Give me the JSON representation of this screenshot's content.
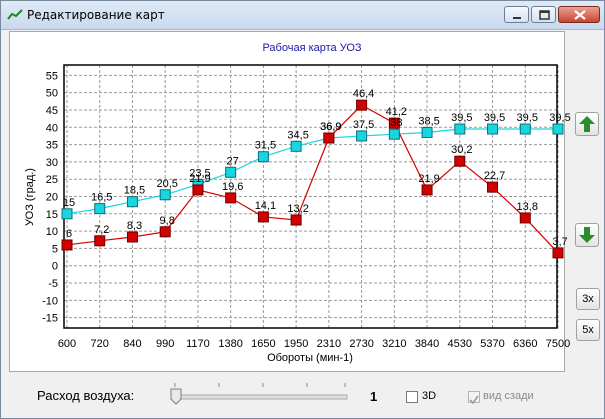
{
  "window": {
    "title": "Редактирование карт",
    "controls": {
      "minimize": "minimize",
      "maximize": "maximize",
      "close": "close"
    }
  },
  "side_buttons": {
    "up_icon": "arrow-up",
    "down_icon": "arrow-down",
    "zoom3": "3x",
    "zoom5": "5x"
  },
  "bottom": {
    "air_label": "Расход воздуха:",
    "slider_value": "1",
    "check_3d_label": "3D",
    "check_rear_label": "вид сзади",
    "check_3d": false,
    "check_rear": true
  },
  "colors": {
    "series_red": "#d40000",
    "series_cyan": "#18d6e0",
    "title_blue": "#1a1aa8",
    "arrow_green": "#2a8c2a"
  },
  "chart_data": {
    "type": "line",
    "title": "Рабочая карта УОЗ",
    "xlabel": "Обороты (мин-1)",
    "ylabel": "УОЗ (град.)",
    "categories": [
      "600",
      "720",
      "840",
      "990",
      "1170",
      "1380",
      "1650",
      "1950",
      "2310",
      "2730",
      "3210",
      "3840",
      "4530",
      "5370",
      "6360",
      "7500"
    ],
    "ylim": [
      -18,
      58
    ],
    "yticks": [
      55,
      50,
      45,
      40,
      35,
      30,
      25,
      20,
      15,
      10,
      5,
      0,
      -5,
      -10,
      -15
    ],
    "grid": true,
    "series": [
      {
        "color": "#d40000",
        "marker": "square",
        "values": [
          6,
          7.2,
          8.3,
          9.8,
          21.9,
          19.6,
          14.1,
          13.2,
          36.9,
          46.4,
          41.2,
          21.9,
          30.2,
          22.7,
          13.8,
          3.7
        ],
        "labels": [
          "6",
          "7,2",
          "8,3",
          "9,8",
          "21,9",
          "19,6",
          "14,1",
          "13,2",
          "36,9",
          "46,4",
          "41,2",
          "21,9",
          "30,2",
          "22,7",
          "13,8",
          "3,7"
        ]
      },
      {
        "color": "#18d6e0",
        "marker": "square",
        "values": [
          15,
          16.5,
          18.5,
          20.5,
          23.5,
          27,
          31.5,
          34.5,
          36.9,
          37.5,
          38,
          38.5,
          39.5,
          39.5,
          39.5,
          39.5
        ],
        "labels": [
          "15",
          "16,5",
          "18,5",
          "20,5",
          "23,5",
          "27",
          "31,5",
          "34,5",
          "36,9",
          "37,5",
          "38",
          "38,5",
          "39,5",
          "39,5",
          "39,5",
          "39,5"
        ]
      }
    ]
  }
}
